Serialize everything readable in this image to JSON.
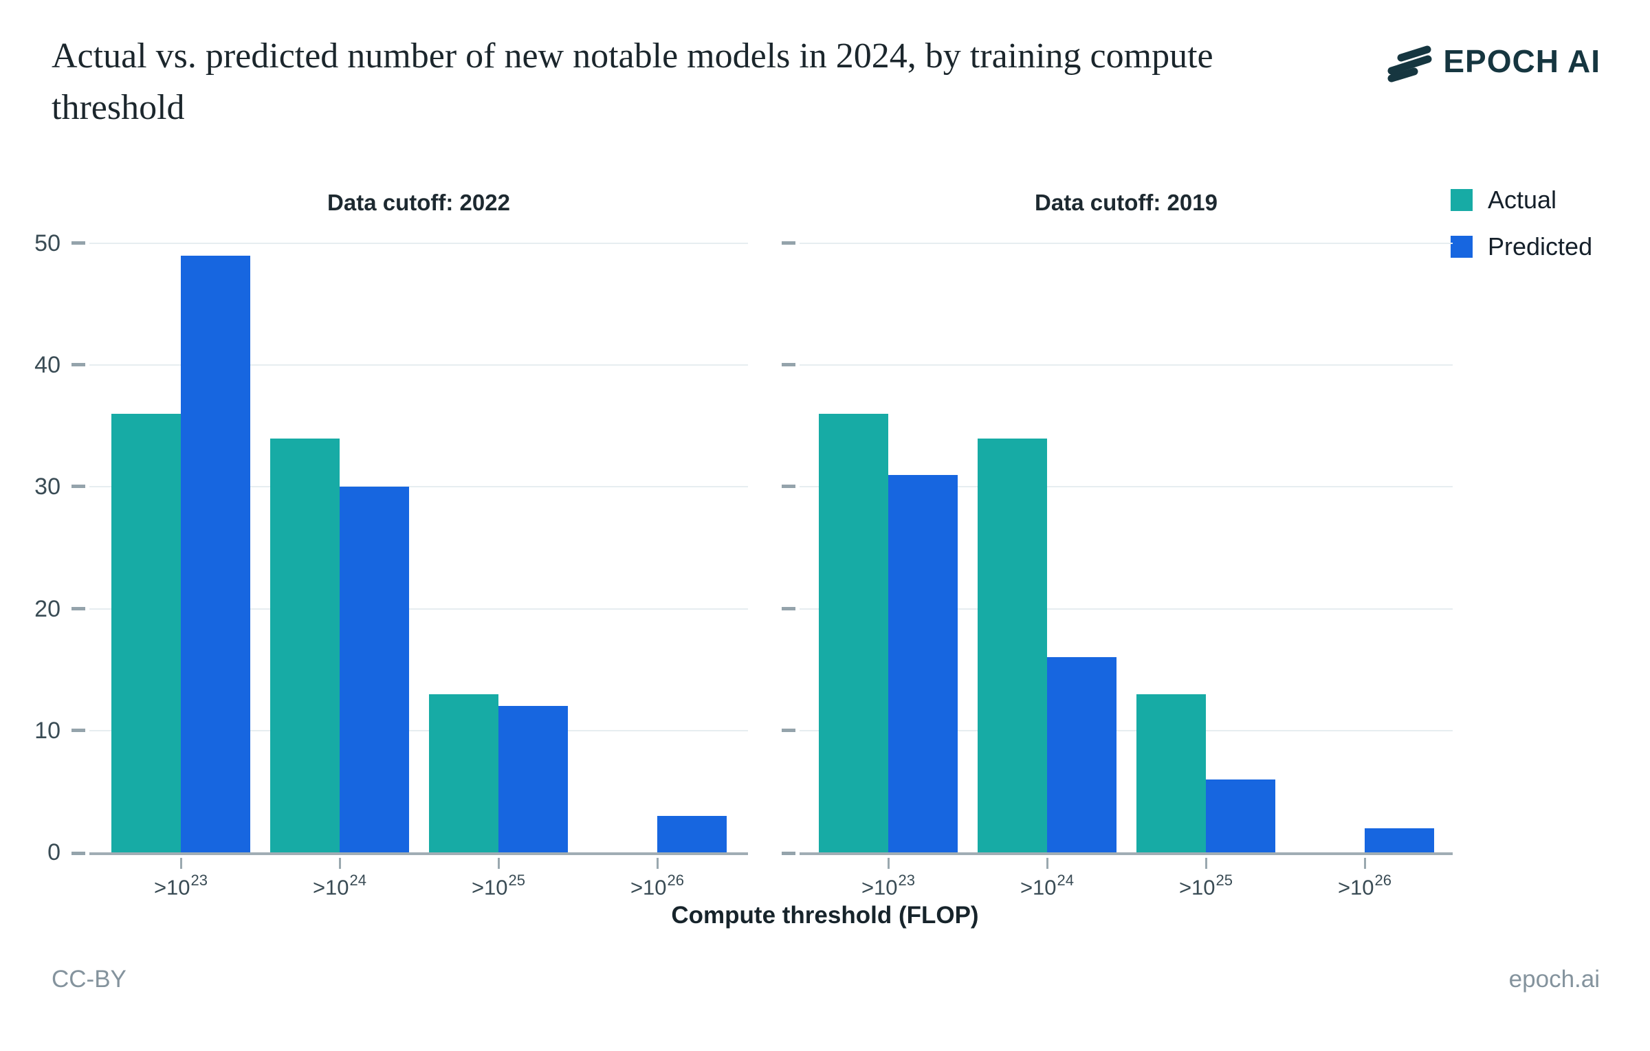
{
  "header": {
    "title": "Actual vs. predicted number of new notable models in 2024, by training compute threshold",
    "logo_text": "EPOCH AI"
  },
  "legend": {
    "items": [
      {
        "label": "Actual",
        "color": "#17aba5"
      },
      {
        "label": "Predicted",
        "color": "#1766e0"
      }
    ]
  },
  "footer": {
    "license": "CC-BY",
    "site": "epoch.ai"
  },
  "colors": {
    "actual": "#17aba5",
    "predicted": "#1766e0",
    "gridline": "#e6edf0",
    "baseline": "#a0adb4",
    "axis_text": "#394b54"
  },
  "chart_data": {
    "type": "bar",
    "title": "Actual vs. predicted number of new notable models in 2024, by training compute threshold",
    "xlabel": "Compute threshold (FLOP)",
    "ylabel": "",
    "ylim": [
      0,
      50
    ],
    "yticks": [
      0,
      10,
      20,
      30,
      40,
      50
    ],
    "grid": true,
    "legend_position": "top-right",
    "categories": [
      {
        "base": ">10",
        "exp": "23"
      },
      {
        "base": ">10",
        "exp": "24"
      },
      {
        "base": ">10",
        "exp": "25"
      },
      {
        "base": ">10",
        "exp": "26"
      }
    ],
    "panels": [
      {
        "title": "Data cutoff: 2022",
        "series": [
          {
            "name": "Actual",
            "color": "#17aba5",
            "values": [
              36,
              34,
              13,
              0
            ]
          },
          {
            "name": "Predicted",
            "color": "#1766e0",
            "values": [
              49,
              30,
              12,
              3
            ]
          }
        ]
      },
      {
        "title": "Data cutoff: 2019",
        "series": [
          {
            "name": "Actual",
            "color": "#17aba5",
            "values": [
              36,
              34,
              13,
              0
            ]
          },
          {
            "name": "Predicted",
            "color": "#1766e0",
            "values": [
              31,
              16,
              6,
              2
            ]
          }
        ]
      }
    ]
  }
}
